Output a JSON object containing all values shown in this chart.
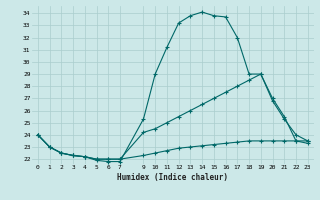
{
  "xlabel": "Humidex (Indice chaleur)",
  "bg_color": "#cce8e8",
  "grid_color": "#aacece",
  "line_color": "#006868",
  "xlim": [
    -0.5,
    23.5
  ],
  "ylim": [
    21.6,
    34.6
  ],
  "xticks": [
    0,
    1,
    2,
    3,
    4,
    5,
    6,
    7,
    9,
    10,
    11,
    12,
    13,
    14,
    15,
    16,
    17,
    18,
    19,
    20,
    21,
    22,
    23
  ],
  "yticks": [
    22,
    23,
    24,
    25,
    26,
    27,
    28,
    29,
    30,
    31,
    32,
    33,
    34
  ],
  "series1_x": [
    0,
    1,
    2,
    3,
    4,
    5,
    6,
    7,
    9,
    10,
    11,
    12,
    13,
    14,
    15,
    16,
    17,
    18,
    19,
    20,
    21,
    22,
    23
  ],
  "series1_y": [
    24.0,
    23.0,
    22.5,
    22.3,
    22.2,
    21.9,
    21.8,
    21.8,
    25.3,
    29.0,
    31.2,
    33.2,
    33.8,
    34.1,
    33.8,
    33.7,
    32.0,
    29.0,
    29.0,
    26.8,
    25.3,
    24.0,
    23.5
  ],
  "series2_x": [
    0,
    1,
    2,
    3,
    4,
    5,
    6,
    7,
    9,
    10,
    11,
    12,
    13,
    14,
    15,
    16,
    17,
    18,
    19,
    20,
    21,
    22,
    23
  ],
  "series2_y": [
    24.0,
    23.0,
    22.5,
    22.3,
    22.2,
    22.0,
    22.0,
    22.0,
    24.2,
    24.5,
    25.0,
    25.5,
    26.0,
    26.5,
    27.0,
    27.5,
    28.0,
    28.5,
    29.0,
    27.0,
    25.5,
    23.5,
    23.3
  ],
  "series3_x": [
    0,
    1,
    2,
    3,
    4,
    5,
    6,
    7,
    9,
    10,
    11,
    12,
    13,
    14,
    15,
    16,
    17,
    18,
    19,
    20,
    21,
    22,
    23
  ],
  "series3_y": [
    24.0,
    23.0,
    22.5,
    22.3,
    22.2,
    22.0,
    22.0,
    22.0,
    22.3,
    22.5,
    22.7,
    22.9,
    23.0,
    23.1,
    23.2,
    23.3,
    23.4,
    23.5,
    23.5,
    23.5,
    23.5,
    23.5,
    23.5
  ]
}
